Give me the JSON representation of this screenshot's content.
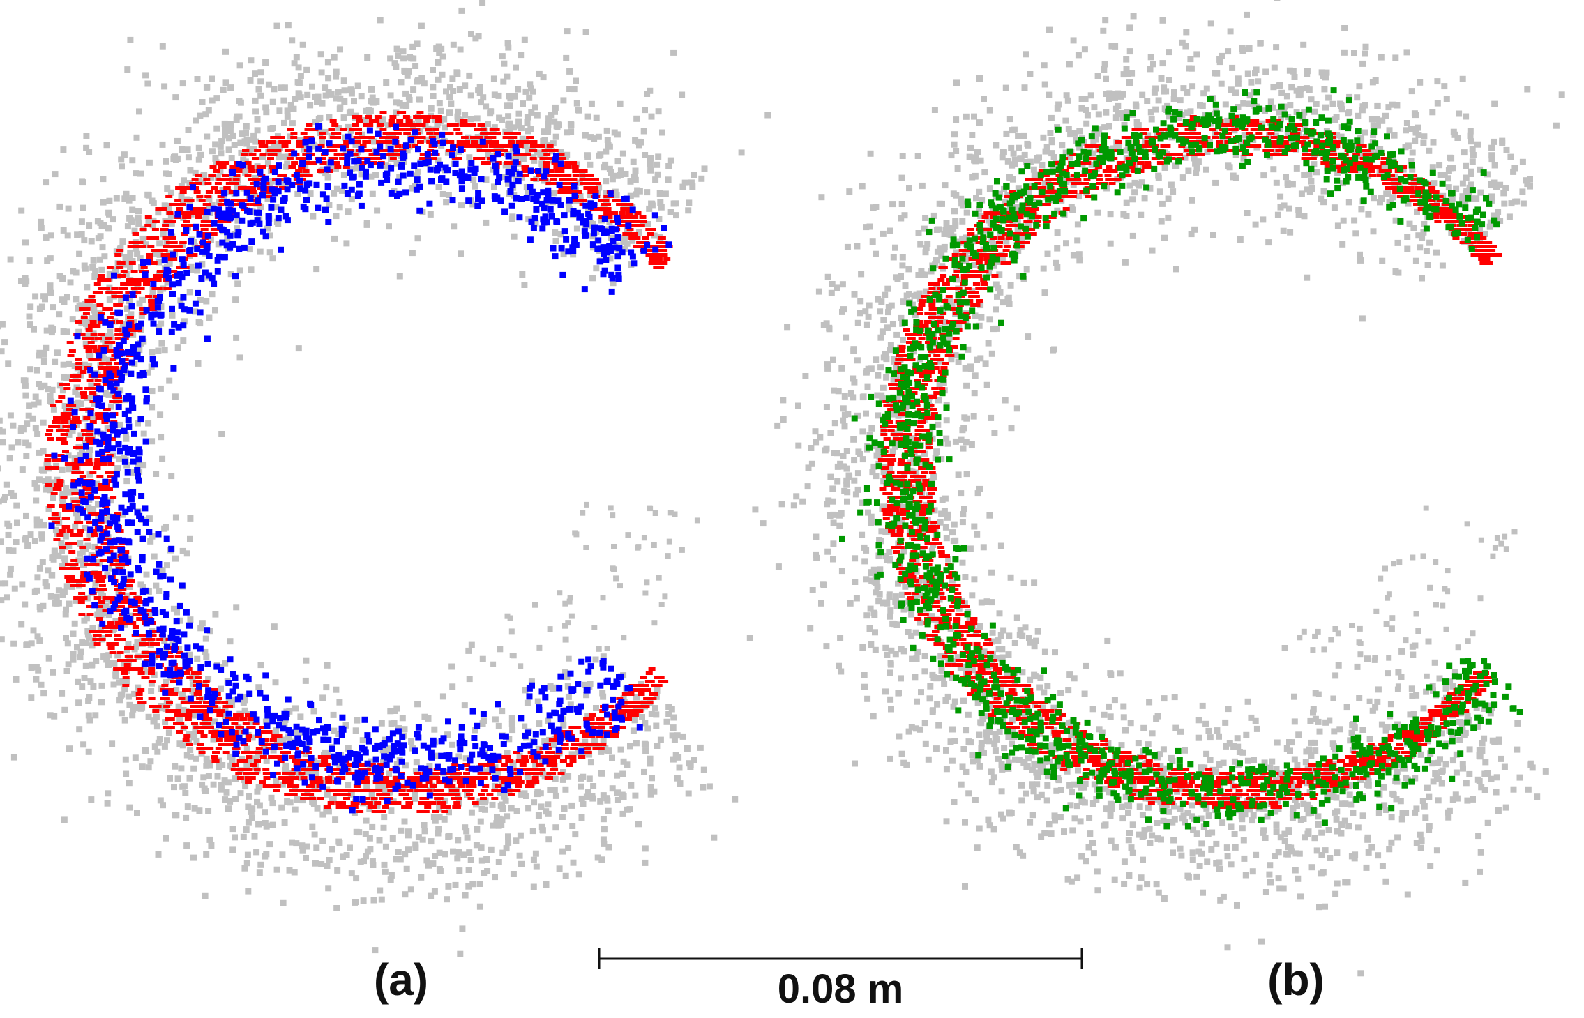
{
  "chart_data": [
    {
      "type": "scatter",
      "panel_label": "(a)",
      "title": "",
      "xlabel": "",
      "ylabel": "",
      "grid": false,
      "axes_visible": false,
      "series": [
        {
          "role": "background-noise",
          "color": "#c0c0c0",
          "marker": "square",
          "shape": "C-shaped arc band, wide and diffuse"
        },
        {
          "role": "reference-arc",
          "color": "#ff0000",
          "marker": "square",
          "shape": "C-shaped arc band with horizontal striping"
        },
        {
          "role": "fitted-points",
          "color": "#0000ff",
          "marker": "square",
          "shape": "C-shaped arc band, narrower, inside the red band"
        }
      ]
    },
    {
      "type": "scatter",
      "panel_label": "(b)",
      "title": "",
      "xlabel": "",
      "ylabel": "",
      "grid": false,
      "axes_visible": false,
      "series": [
        {
          "role": "background-noise",
          "color": "#c0c0c0",
          "marker": "square",
          "shape": "C-shaped arc band, wide and diffuse"
        },
        {
          "role": "reference-arc",
          "color": "#ff0000",
          "marker": "square",
          "shape": "C-shaped arc band with horizontal striping"
        },
        {
          "role": "fitted-points",
          "color": "#009900",
          "marker": "square",
          "shape": "C-shaped arc band overlapping the red band"
        }
      ]
    }
  ],
  "scale_bar": {
    "label": "0.08 m",
    "length_m": 0.08
  }
}
